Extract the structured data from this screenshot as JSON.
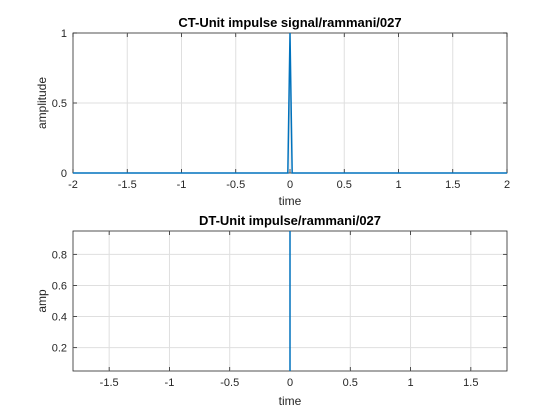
{
  "chart_data": [
    {
      "type": "line",
      "title": "CT-Unit impulse signal/rammani/027",
      "xlabel": "time",
      "ylabel": "amplitude",
      "xlim": [
        -2,
        2
      ],
      "ylim": [
        0,
        1
      ],
      "xticks": [
        -2,
        -1.5,
        -1,
        -0.5,
        0,
        0.5,
        1,
        1.5,
        2
      ],
      "xtick_labels": [
        "-2",
        "-1.5",
        "-1",
        "-0.5",
        "0",
        "0.5",
        "1",
        "1.5",
        "2"
      ],
      "yticks": [
        0,
        0.5,
        1
      ],
      "ytick_labels": [
        "0",
        "0.5",
        "1"
      ],
      "grid": true,
      "color": "#0072BD",
      "series": [
        {
          "x": [
            -2,
            -0.02,
            0,
            0.02,
            2
          ],
          "y": [
            0,
            0,
            1,
            0,
            0
          ]
        }
      ]
    },
    {
      "type": "line",
      "title": "DT-Unit impulse/rammani/027",
      "xlabel": "time",
      "ylabel": "amp",
      "xlim": [
        -1.8,
        1.8
      ],
      "ylim": [
        0.05,
        0.95
      ],
      "xticks": [
        -1.5,
        -1,
        -0.5,
        0,
        0.5,
        1,
        1.5
      ],
      "xtick_labels": [
        "-1.5",
        "-1",
        "-0.5",
        "0",
        "0.5",
        "1",
        "1.5"
      ],
      "yticks": [
        0.2,
        0.4,
        0.6,
        0.8
      ],
      "ytick_labels": [
        "0.2",
        "0.4",
        "0.6",
        "0.8"
      ],
      "grid": true,
      "color": "#0072BD",
      "series": [
        {
          "x": [
            0,
            0
          ],
          "y": [
            0.05,
            0.95
          ]
        }
      ]
    }
  ]
}
